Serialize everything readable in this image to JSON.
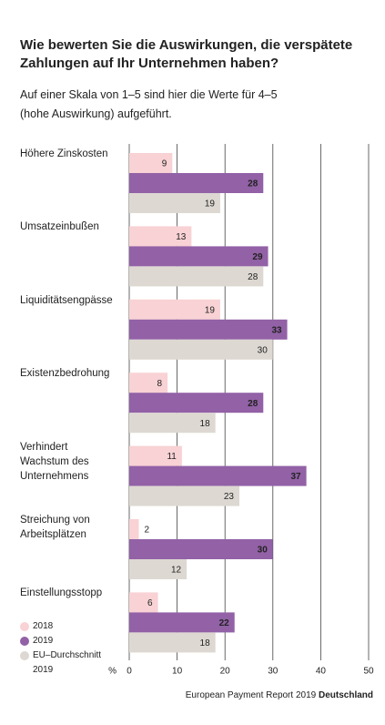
{
  "chart_data": {
    "type": "bar",
    "orientation": "horizontal",
    "title": "Wie bewerten Sie die Auswirkungen, die verspätete\nZahlungen auf Ihr Unternehmen haben?",
    "subtitle": "Auf einer Skala von 1–5 sind hier die Werte für 4–5\n(hohe Auswirkung) aufgeführt.",
    "categories": [
      "Höhere Zinskosten",
      "Umsatzeinbußen",
      "Liquiditätsengpässe",
      "Existenzbedrohung",
      "Verhindert\nWachstum des\nUnternehmens",
      "Streichung von\nArbeitsplätzen",
      "Einstellungsstopp"
    ],
    "series": [
      {
        "name": "2018",
        "color": "#f8d2d4",
        "values": [
          9,
          13,
          19,
          8,
          11,
          2,
          6
        ]
      },
      {
        "name": "2019",
        "color": "#9261a6",
        "values": [
          28,
          29,
          33,
          28,
          37,
          30,
          22
        ]
      },
      {
        "name": "EU–Durchschnitt\n2019",
        "color": "#ddd8d2",
        "values": [
          19,
          28,
          30,
          18,
          23,
          12,
          18
        ]
      }
    ],
    "xlabel": "%",
    "xlim": [
      0,
      50
    ],
    "xticks": [
      0,
      10,
      20,
      30,
      40,
      50
    ],
    "grid": true,
    "source": "European Payment Report 2019",
    "source_emphasis": "Deutschland"
  }
}
